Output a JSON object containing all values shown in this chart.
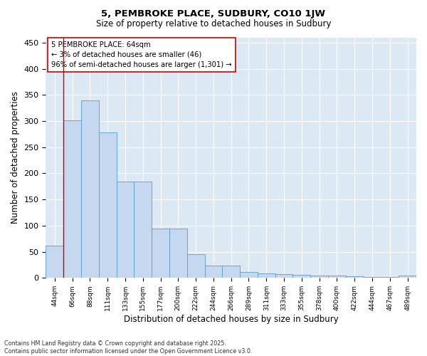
{
  "title_line1": "5, PEMBROKE PLACE, SUDBURY, CO10 1JW",
  "title_line2": "Size of property relative to detached houses in Sudbury",
  "xlabel": "Distribution of detached houses by size in Sudbury",
  "ylabel": "Number of detached properties",
  "annotation_lines": [
    "5 PEMBROKE PLACE: 64sqm",
    "← 3% of detached houses are smaller (46)",
    "96% of semi-detached houses are larger (1,301) →"
  ],
  "footer_lines": [
    "Contains HM Land Registry data © Crown copyright and database right 2025.",
    "Contains public sector information licensed under the Open Government Licence v3.0."
  ],
  "categories": [
    "44sqm",
    "66sqm",
    "88sqm",
    "111sqm",
    "133sqm",
    "155sqm",
    "177sqm",
    "200sqm",
    "222sqm",
    "244sqm",
    "266sqm",
    "289sqm",
    "311sqm",
    "333sqm",
    "355sqm",
    "378sqm",
    "400sqm",
    "422sqm",
    "444sqm",
    "467sqm",
    "489sqm"
  ],
  "values": [
    62,
    302,
    340,
    278,
    184,
    184,
    95,
    95,
    45,
    23,
    23,
    12,
    8,
    7,
    6,
    5,
    4,
    3,
    2,
    2,
    5
  ],
  "bar_color": "#c5d8ef",
  "bar_edge_color": "#5b9bd5",
  "vline_color": "#cc0000",
  "background_color": "#ffffff",
  "plot_bg_color": "#dde8f5",
  "grid_color": "#ffffff",
  "ylim": [
    0,
    460
  ],
  "yticks": [
    0,
    50,
    100,
    150,
    200,
    250,
    300,
    350,
    400,
    450
  ],
  "annotation_box_facecolor": "#ffffff",
  "annotation_box_edgecolor": "#cc0000"
}
